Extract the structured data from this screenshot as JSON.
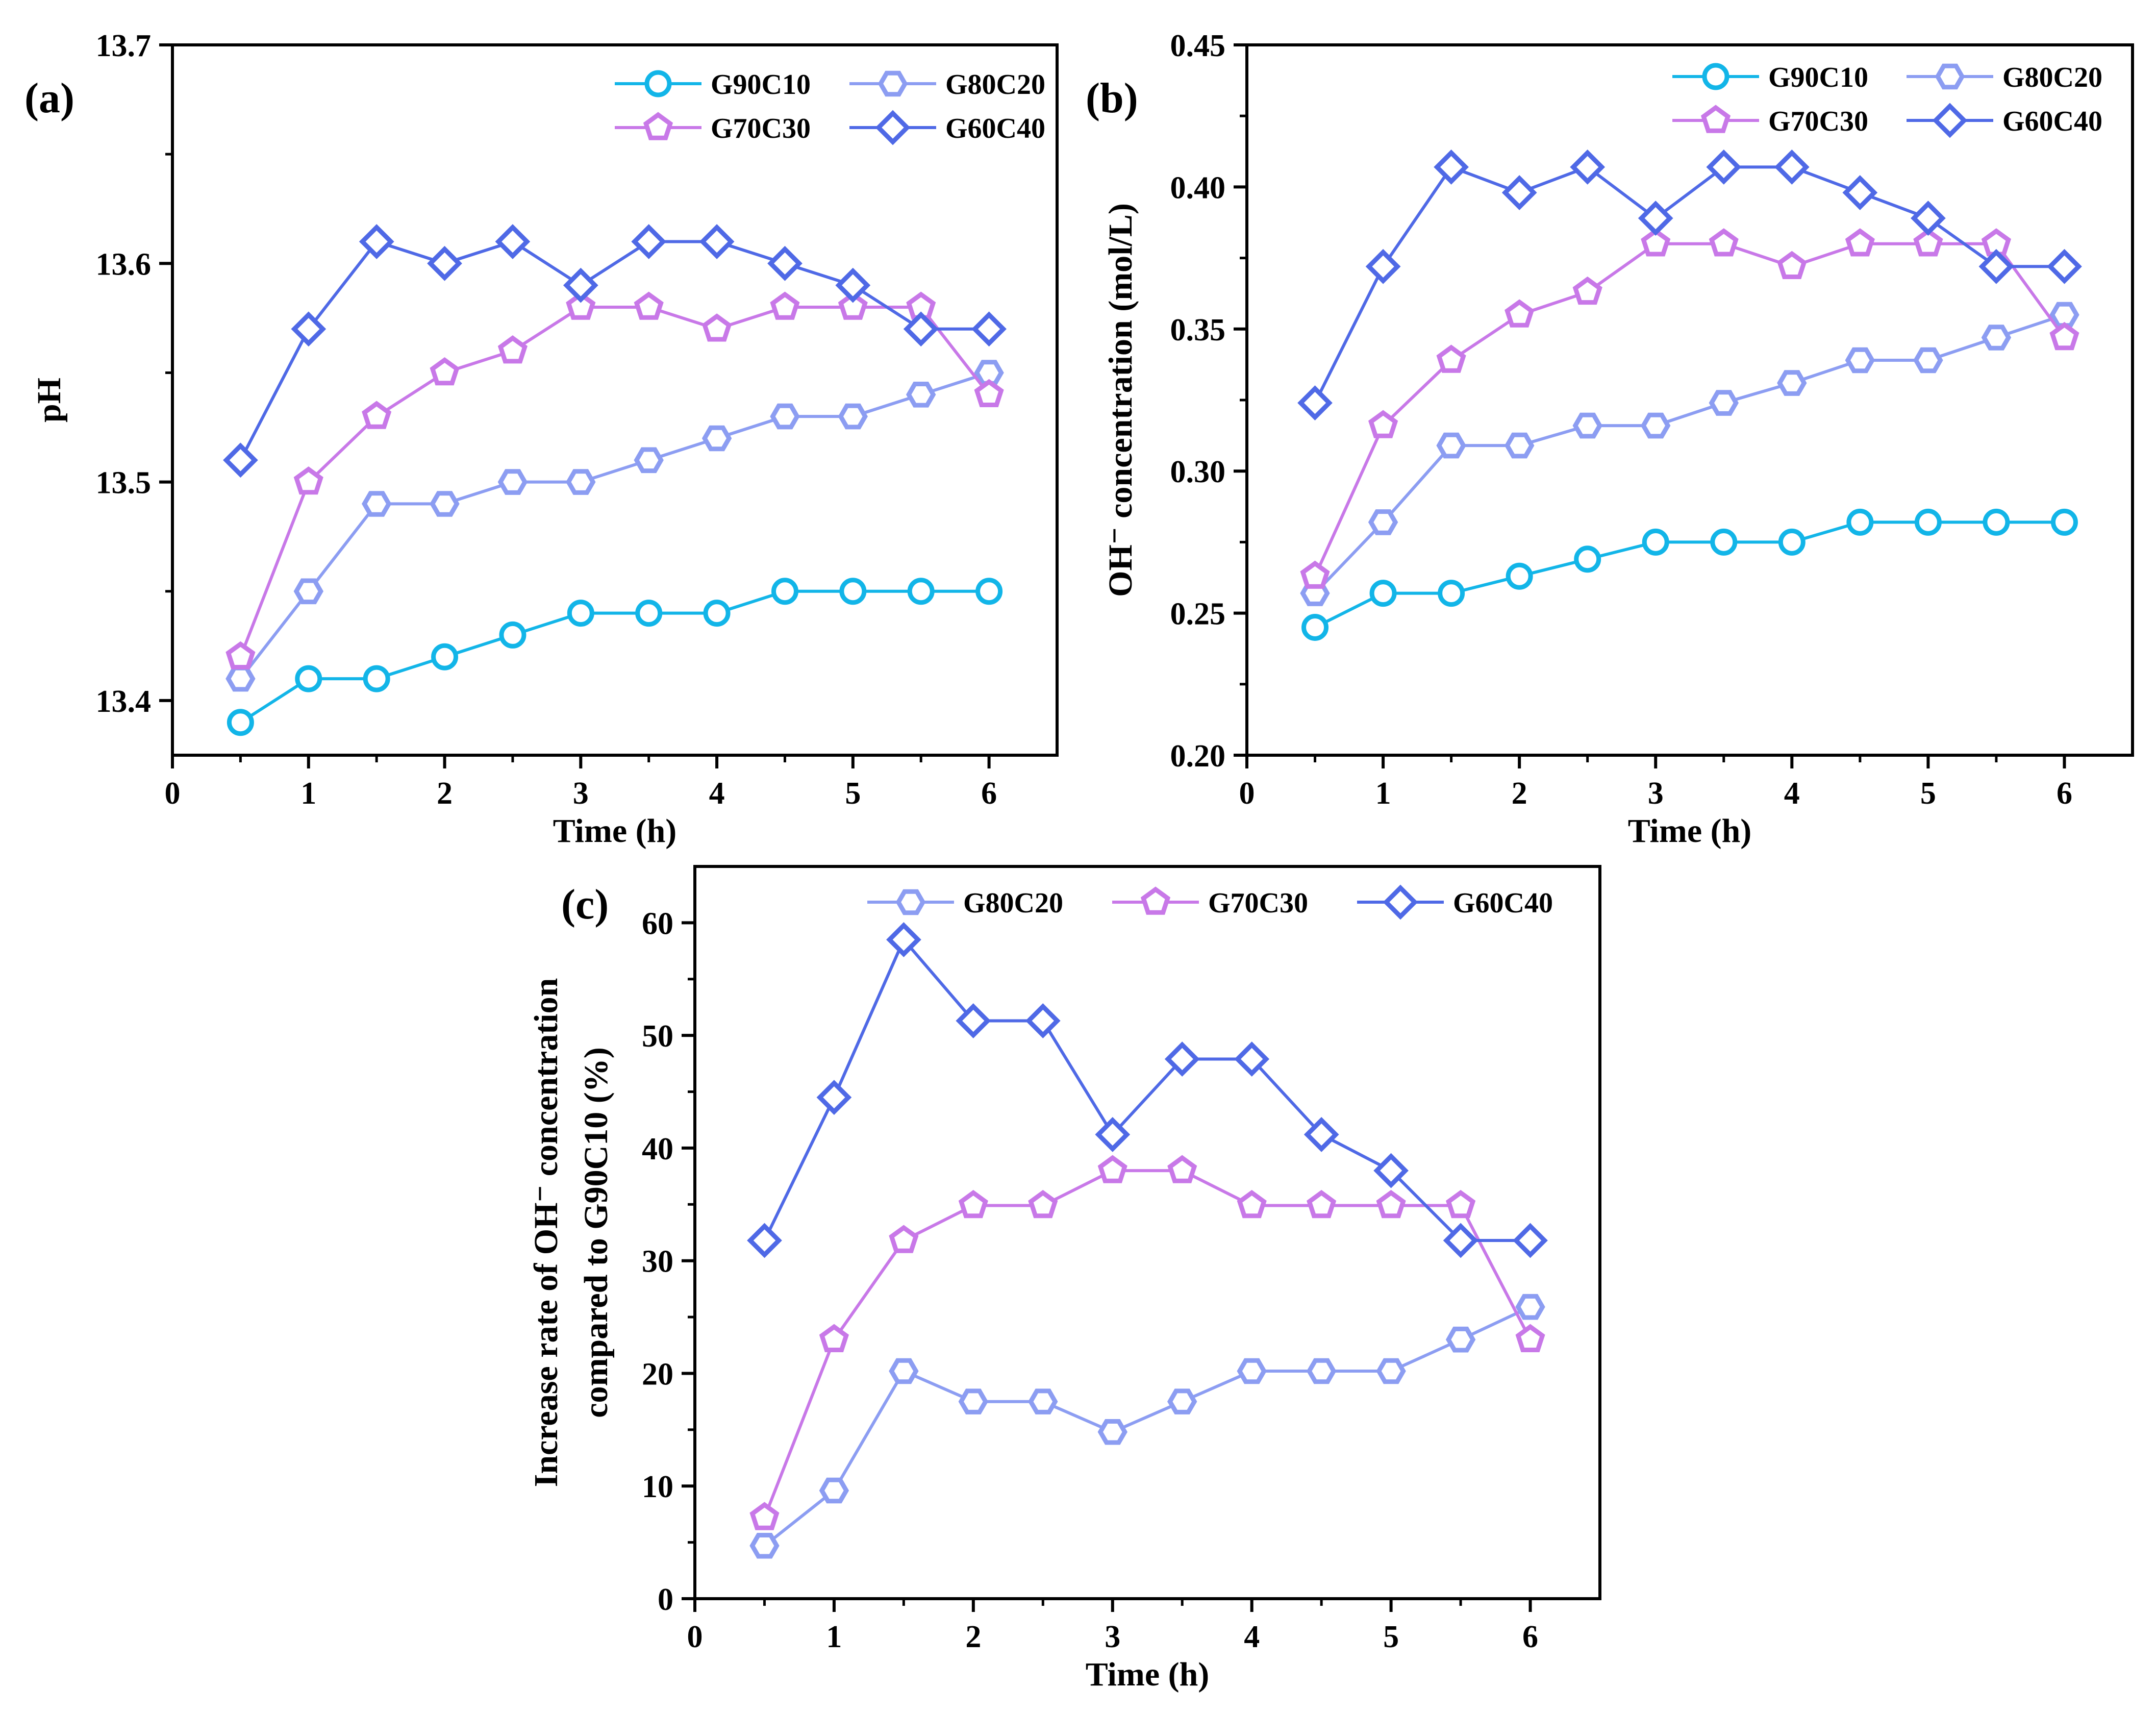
{
  "colors": {
    "G90C10": "#12b5e8",
    "G80C20": "#8c9df2",
    "G70C30": "#c878e8",
    "G60C40": "#4f69e6",
    "axis": "#000000"
  },
  "chart_data": [
    {
      "type": "line",
      "panel_label": "(a)",
      "xlabel": "Time (h)",
      "ylabel": "pH",
      "xlim": [
        0,
        6.5
      ],
      "ylim": [
        13.375,
        13.7
      ],
      "xticks": [
        0,
        1,
        2,
        3,
        4,
        5,
        6
      ],
      "yticks": [
        13.4,
        13.5,
        13.6,
        13.7
      ],
      "xtick_labels": [
        "0",
        "1",
        "2",
        "3",
        "4",
        "5",
        "6"
      ],
      "ytick_labels": [
        "13.4",
        "13.5",
        "13.6",
        "13.7"
      ],
      "legend_position": "top-right",
      "legend_columns": 2,
      "x": [
        0.5,
        1,
        1.5,
        2,
        2.5,
        3,
        3.5,
        4,
        4.5,
        5,
        5.5,
        6
      ],
      "series": [
        {
          "name": "G90C10",
          "marker": "circle",
          "values": [
            13.39,
            13.41,
            13.41,
            13.42,
            13.43,
            13.44,
            13.44,
            13.44,
            13.45,
            13.45,
            13.45,
            13.45
          ]
        },
        {
          "name": "G80C20",
          "marker": "hexagon",
          "values": [
            13.41,
            13.45,
            13.49,
            13.49,
            13.5,
            13.5,
            13.51,
            13.52,
            13.53,
            13.53,
            13.54,
            13.55
          ]
        },
        {
          "name": "G70C30",
          "marker": "pentagon",
          "values": [
            13.42,
            13.5,
            13.53,
            13.55,
            13.56,
            13.58,
            13.58,
            13.57,
            13.58,
            13.58,
            13.58,
            13.54
          ]
        },
        {
          "name": "G60C40",
          "marker": "diamond",
          "values": [
            13.51,
            13.57,
            13.61,
            13.6,
            13.61,
            13.59,
            13.61,
            13.61,
            13.6,
            13.59,
            13.57,
            13.57
          ]
        }
      ]
    },
    {
      "type": "line",
      "panel_label": "(b)",
      "xlabel": "Time (h)",
      "ylabel": "OH⁻ concentration (mol/L)",
      "xlim": [
        0,
        6.5
      ],
      "ylim": [
        0.2,
        0.45
      ],
      "xticks": [
        0,
        1,
        2,
        3,
        4,
        5,
        6
      ],
      "yticks": [
        0.2,
        0.25,
        0.3,
        0.35,
        0.4,
        0.45
      ],
      "xtick_labels": [
        "0",
        "1",
        "2",
        "3",
        "4",
        "5",
        "6"
      ],
      "ytick_labels": [
        "0.20",
        "0.25",
        "0.30",
        "0.35",
        "0.40",
        "0.45"
      ],
      "legend_position": "top-right",
      "legend_columns": 2,
      "x": [
        0.5,
        1,
        1.5,
        2,
        2.5,
        3,
        3.5,
        4,
        4.5,
        5,
        5.5,
        6
      ],
      "series": [
        {
          "name": "G90C10",
          "marker": "circle",
          "values": [
            0.245,
            0.257,
            0.257,
            0.263,
            0.269,
            0.275,
            0.275,
            0.275,
            0.282,
            0.282,
            0.282,
            0.282
          ]
        },
        {
          "name": "G80C20",
          "marker": "hexagon",
          "values": [
            0.257,
            0.282,
            0.309,
            0.309,
            0.316,
            0.316,
            0.324,
            0.331,
            0.339,
            0.339,
            0.347,
            0.355
          ]
        },
        {
          "name": "G70C30",
          "marker": "pentagon",
          "values": [
            0.263,
            0.316,
            0.339,
            0.355,
            0.363,
            0.38,
            0.38,
            0.372,
            0.38,
            0.38,
            0.38,
            0.347
          ]
        },
        {
          "name": "G60C40",
          "marker": "diamond",
          "values": [
            0.324,
            0.372,
            0.407,
            0.398,
            0.407,
            0.389,
            0.407,
            0.407,
            0.398,
            0.389,
            0.372,
            0.372
          ]
        }
      ]
    },
    {
      "type": "line",
      "panel_label": "(c)",
      "xlabel": "Time (h)",
      "ylabel": "Increase rate of OH⁻ concentration",
      "ylabel2": "compared to G90C10 (%)",
      "xlim": [
        0,
        6.5
      ],
      "ylim": [
        0,
        65
      ],
      "xticks": [
        0,
        1,
        2,
        3,
        4,
        5,
        6
      ],
      "yticks": [
        0,
        10,
        20,
        30,
        40,
        50,
        60
      ],
      "xtick_labels": [
        "0",
        "1",
        "2",
        "3",
        "4",
        "5",
        "6"
      ],
      "ytick_labels": [
        "0",
        "10",
        "20",
        "30",
        "40",
        "50",
        "60"
      ],
      "legend_position": "top",
      "legend_columns": 3,
      "x": [
        0.5,
        1,
        1.5,
        2,
        2.5,
        3,
        3.5,
        4,
        4.5,
        5,
        5.5,
        6
      ],
      "series": [
        {
          "name": "G80C20",
          "marker": "hexagon",
          "values": [
            4.7,
            9.6,
            20.2,
            17.5,
            17.5,
            14.8,
            17.5,
            20.2,
            20.2,
            20.2,
            23.0,
            25.9
          ]
        },
        {
          "name": "G70C30",
          "marker": "pentagon",
          "values": [
            7.2,
            23.0,
            31.8,
            34.9,
            34.9,
            38.0,
            38.0,
            34.9,
            34.9,
            34.9,
            34.9,
            23.0
          ]
        },
        {
          "name": "G60C40",
          "marker": "diamond",
          "values": [
            31.8,
            44.5,
            58.5,
            51.3,
            51.3,
            41.2,
            47.9,
            47.9,
            41.2,
            38.0,
            31.8,
            31.8
          ]
        }
      ]
    }
  ]
}
